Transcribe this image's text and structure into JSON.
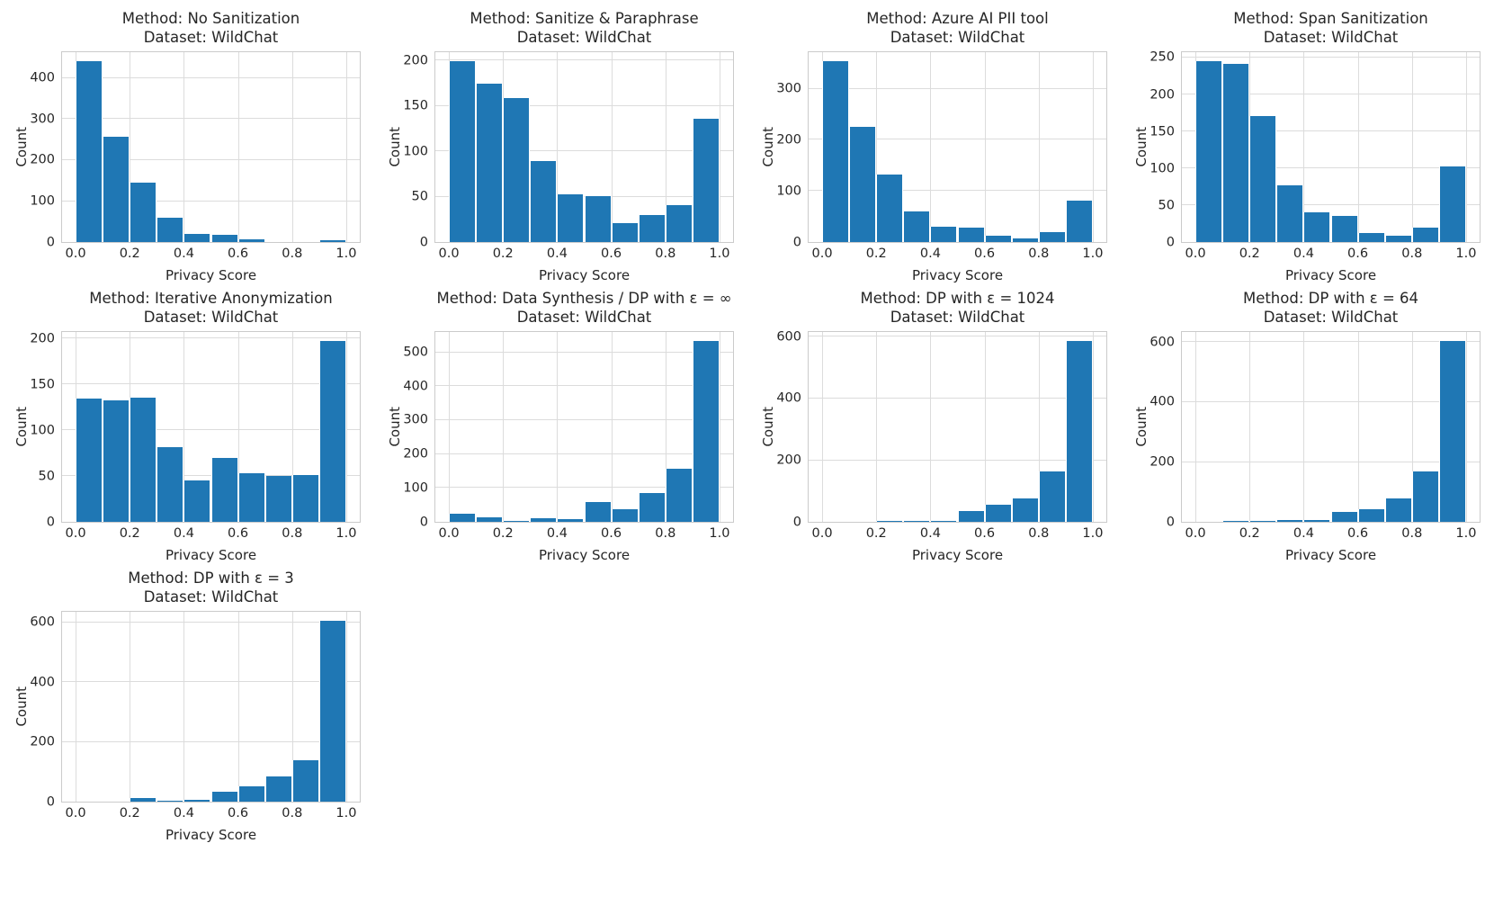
{
  "colors": {
    "bar": "#1f77b4",
    "grid": "#dcdcdc",
    "spine": "#cbcbcb",
    "text": "#262626",
    "background": "#ffffff"
  },
  "chart_data": [
    {
      "type": "bar",
      "title_line1": "Method: No Sanitization",
      "title_line2": "Dataset: WildChat",
      "xlabel": "Privacy Score",
      "ylabel": "Count",
      "bin_edges": [
        0.0,
        0.1,
        0.2,
        0.3,
        0.4,
        0.5,
        0.6,
        0.7,
        0.8,
        0.9,
        1.0
      ],
      "values": [
        440,
        257,
        145,
        60,
        20,
        17,
        8,
        0,
        0,
        5
      ],
      "x_ticks": [
        "0.0",
        "0.2",
        "0.4",
        "0.6",
        "0.8",
        "1.0"
      ],
      "y_ticks": [
        0,
        100,
        200,
        300,
        400
      ],
      "xlim": [
        -0.05,
        1.05
      ],
      "ylim": [
        0,
        462
      ],
      "grid": true
    },
    {
      "type": "bar",
      "title_line1": "Method: Sanitize & Paraphrase",
      "title_line2": "Dataset: WildChat",
      "xlabel": "Privacy Score",
      "ylabel": "Count",
      "bin_edges": [
        0.0,
        0.1,
        0.2,
        0.3,
        0.4,
        0.5,
        0.6,
        0.7,
        0.8,
        0.9,
        1.0
      ],
      "values": [
        199,
        175,
        159,
        89,
        53,
        51,
        21,
        30,
        41,
        136
      ],
      "x_ticks": [
        "0.0",
        "0.2",
        "0.4",
        "0.6",
        "0.8",
        "1.0"
      ],
      "y_ticks": [
        0,
        50,
        100,
        150,
        200
      ],
      "xlim": [
        -0.05,
        1.05
      ],
      "ylim": [
        0,
        209
      ],
      "grid": true
    },
    {
      "type": "bar",
      "title_line1": "Method: Azure AI PII tool",
      "title_line2": "Dataset: WildChat",
      "xlabel": "Privacy Score",
      "ylabel": "Count",
      "bin_edges": [
        0.0,
        0.1,
        0.2,
        0.3,
        0.4,
        0.5,
        0.6,
        0.7,
        0.8,
        0.9,
        1.0
      ],
      "values": [
        353,
        225,
        133,
        60,
        30,
        29,
        13,
        8,
        20,
        82
      ],
      "x_ticks": [
        "0.0",
        "0.2",
        "0.4",
        "0.6",
        "0.8",
        "1.0"
      ],
      "y_ticks": [
        0,
        100,
        200,
        300
      ],
      "xlim": [
        -0.05,
        1.05
      ],
      "ylim": [
        0,
        371
      ],
      "grid": true
    },
    {
      "type": "bar",
      "title_line1": "Method: Span Sanitization",
      "title_line2": "Dataset: WildChat",
      "xlabel": "Privacy Score",
      "ylabel": "Count",
      "bin_edges": [
        0.0,
        0.1,
        0.2,
        0.3,
        0.4,
        0.5,
        0.6,
        0.7,
        0.8,
        0.9,
        1.0
      ],
      "values": [
        245,
        242,
        171,
        77,
        41,
        35,
        12,
        9,
        20,
        102
      ],
      "x_ticks": [
        "0.0",
        "0.2",
        "0.4",
        "0.6",
        "0.8",
        "1.0"
      ],
      "y_ticks": [
        0,
        50,
        100,
        150,
        200,
        250
      ],
      "xlim": [
        -0.05,
        1.05
      ],
      "ylim": [
        0,
        257
      ],
      "grid": true
    },
    {
      "type": "bar",
      "title_line1": "Method: Iterative Anonymization",
      "title_line2": "Dataset: WildChat",
      "xlabel": "Privacy Score",
      "ylabel": "Count",
      "bin_edges": [
        0.0,
        0.1,
        0.2,
        0.3,
        0.4,
        0.5,
        0.6,
        0.7,
        0.8,
        0.9,
        1.0
      ],
      "values": [
        135,
        133,
        136,
        82,
        45,
        70,
        53,
        50,
        51,
        197
      ],
      "x_ticks": [
        "0.0",
        "0.2",
        "0.4",
        "0.6",
        "0.8",
        "1.0"
      ],
      "y_ticks": [
        0,
        50,
        100,
        150,
        200
      ],
      "xlim": [
        -0.05,
        1.05
      ],
      "ylim": [
        0,
        207
      ],
      "grid": true
    },
    {
      "type": "bar",
      "title_line1": "Method: Data Synthesis / DP with ε = ∞",
      "title_line2": "Dataset: WildChat",
      "xlabel": "Privacy Score",
      "ylabel": "Count",
      "bin_edges": [
        0.0,
        0.1,
        0.2,
        0.3,
        0.4,
        0.5,
        0.6,
        0.7,
        0.8,
        0.9,
        1.0
      ],
      "values": [
        25,
        13,
        2,
        11,
        9,
        58,
        38,
        85,
        158,
        532
      ],
      "x_ticks": [
        "0.0",
        "0.2",
        "0.4",
        "0.6",
        "0.8",
        "1.0"
      ],
      "y_ticks": [
        0,
        100,
        200,
        300,
        400,
        500
      ],
      "xlim": [
        -0.05,
        1.05
      ],
      "ylim": [
        0,
        559
      ],
      "grid": true
    },
    {
      "type": "bar",
      "title_line1": "Method: DP with ε = 1024",
      "title_line2": "Dataset: WildChat",
      "xlabel": "Privacy Score",
      "ylabel": "Count",
      "bin_edges": [
        0.0,
        0.1,
        0.2,
        0.3,
        0.4,
        0.5,
        0.6,
        0.7,
        0.8,
        0.9,
        1.0
      ],
      "values": [
        0,
        0,
        5,
        5,
        5,
        35,
        55,
        75,
        165,
        585
      ],
      "x_ticks": [
        "0.0",
        "0.2",
        "0.4",
        "0.6",
        "0.8",
        "1.0"
      ],
      "y_ticks": [
        0,
        200,
        400,
        600
      ],
      "xlim": [
        -0.05,
        1.05
      ],
      "ylim": [
        0,
        614
      ],
      "grid": true
    },
    {
      "type": "bar",
      "title_line1": "Method: DP with ε = 64",
      "title_line2": "Dataset: WildChat",
      "xlabel": "Privacy Score",
      "ylabel": "Count",
      "bin_edges": [
        0.0,
        0.1,
        0.2,
        0.3,
        0.4,
        0.5,
        0.6,
        0.7,
        0.8,
        0.9,
        1.0
      ],
      "values": [
        0,
        4,
        5,
        6,
        6,
        33,
        43,
        78,
        168,
        603
      ],
      "x_ticks": [
        "0.0",
        "0.2",
        "0.4",
        "0.6",
        "0.8",
        "1.0"
      ],
      "y_ticks": [
        0,
        200,
        400,
        600
      ],
      "xlim": [
        -0.05,
        1.05
      ],
      "ylim": [
        0,
        633
      ],
      "grid": true
    },
    {
      "type": "bar",
      "title_line1": "Method: DP with ε = 3",
      "title_line2": "Dataset: WildChat",
      "xlabel": "Privacy Score",
      "ylabel": "Count",
      "bin_edges": [
        0.0,
        0.1,
        0.2,
        0.3,
        0.4,
        0.5,
        0.6,
        0.7,
        0.8,
        0.9,
        1.0
      ],
      "values": [
        0,
        0,
        12,
        4,
        6,
        35,
        53,
        85,
        138,
        605
      ],
      "x_ticks": [
        "0.0",
        "0.2",
        "0.4",
        "0.6",
        "0.8",
        "1.0"
      ],
      "y_ticks": [
        0,
        200,
        400,
        600
      ],
      "xlim": [
        -0.05,
        1.05
      ],
      "ylim": [
        0,
        635
      ],
      "grid": true
    }
  ]
}
